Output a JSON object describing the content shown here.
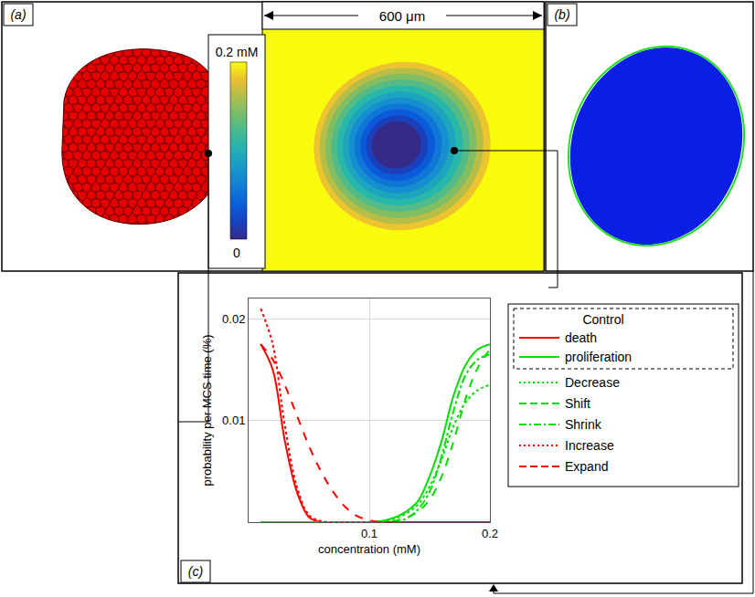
{
  "chart_data": {
    "type": "line",
    "x_label": "concentration (mM)",
    "y_label": "probability per MCS time (%)",
    "x": [
      0.01,
      0.02,
      0.03,
      0.04,
      0.05,
      0.06,
      0.07,
      0.08,
      0.09,
      0.1,
      0.11,
      0.12,
      0.13,
      0.14,
      0.15,
      0.16,
      0.17,
      0.18,
      0.19,
      0.2
    ],
    "xlim": [
      0,
      0.2
    ],
    "xticks": [
      0.1,
      0.2
    ],
    "ylim": [
      0,
      0.022
    ],
    "yticks": [
      0.01,
      0.02
    ],
    "grid": true,
    "legend": "right",
    "legend_heading": "Control",
    "series": [
      {
        "name": "death",
        "color": "#ff0000",
        "line_style": "solid",
        "values": [
          0.0175,
          0.015,
          0.008,
          0.003,
          0.0005,
          0,
          0,
          0,
          0,
          0,
          0,
          0,
          0,
          0,
          0,
          0,
          0,
          0,
          0,
          0
        ]
      },
      {
        "name": "proliferation",
        "color": "#00dd00",
        "line_style": "solid",
        "values": [
          0,
          0,
          0,
          0,
          0,
          0,
          0,
          0,
          0,
          0,
          0.0001,
          0.0004,
          0.001,
          0.002,
          0.0045,
          0.008,
          0.0125,
          0.0155,
          0.017,
          0.0175
        ]
      },
      {
        "name": "Decrease",
        "color": "#00dd00",
        "line_style": "dot",
        "values": [
          0,
          0,
          0,
          0,
          0,
          0,
          0,
          0,
          0,
          0,
          0.0001,
          0.0003,
          0.0008,
          0.0017,
          0.0035,
          0.0062,
          0.0095,
          0.0118,
          0.013,
          0.0135
        ]
      },
      {
        "name": "Shift",
        "color": "#00dd00",
        "line_style": "dash",
        "values": [
          0,
          0,
          0,
          0,
          0,
          0,
          0,
          0,
          0,
          0,
          0,
          0.0001,
          0.0004,
          0.001,
          0.0022,
          0.0045,
          0.008,
          0.0122,
          0.0152,
          0.017
        ]
      },
      {
        "name": "Shrink",
        "color": "#00dd00",
        "line_style": "dashdot",
        "values": [
          0,
          0,
          0,
          0,
          0,
          0,
          0,
          0,
          0,
          0,
          0,
          0,
          0.0003,
          0.0012,
          0.003,
          0.0065,
          0.011,
          0.0145,
          0.016,
          0.0165
        ]
      },
      {
        "name": "Increase",
        "color": "#ff0000",
        "line_style": "dot",
        "values": [
          0.021,
          0.0175,
          0.0095,
          0.0035,
          0.0007,
          0.0001,
          0,
          0,
          0,
          0,
          0,
          0,
          0,
          0,
          0,
          0,
          0,
          0,
          0,
          0
        ]
      },
      {
        "name": "Expand",
        "color": "#ff0000",
        "line_style": "dash",
        "values": [
          0.0175,
          0.016,
          0.0135,
          0.0105,
          0.0075,
          0.005,
          0.003,
          0.0015,
          0.0006,
          0.0002,
          0,
          0,
          0,
          0,
          0,
          0,
          0,
          0,
          0,
          0
        ]
      }
    ]
  },
  "panels": {
    "a": {
      "label": "(a)",
      "scale_bar": "600 μm",
      "colorbar": {
        "range": [
          0,
          0.2
        ],
        "ticks": [
          0,
          {
            "value": 0.2,
            "label": "0.2 mM"
          }
        ]
      }
    },
    "b": {
      "label": "(b)"
    },
    "c": {
      "label": "(c)"
    }
  }
}
